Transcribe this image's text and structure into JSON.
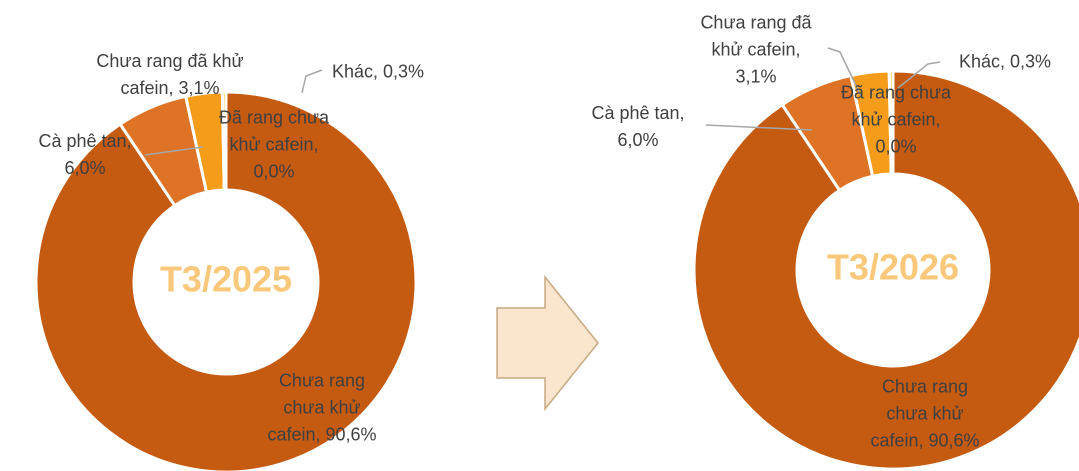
{
  "chart_data": [
    {
      "type": "donut",
      "center_label": "T3/2025",
      "values": [
        90.6,
        6.0,
        3.1,
        0.0,
        0.3
      ],
      "value_labels": [
        "Chưa rang chưa khử cafein, 90,6%",
        "Cà phê tan, 6,0%",
        "Chưa rang đã khử cafein, 3,1%",
        "Đã rang chưa khử cafein, 0,0%",
        "Khác, 0,3%"
      ],
      "colors": [
        "#c55a11",
        "#de7326",
        "#f59d1a",
        "#f8b133",
        "#ffc000"
      ]
    },
    {
      "type": "donut",
      "center_label": "T3/2026",
      "values": [
        90.6,
        6.0,
        3.1,
        0.0,
        0.3
      ],
      "value_labels": [
        "Chưa rang chưa khử cafein, 90,6%",
        "Cà phê tan, 6,0%",
        "Chưa rang đã khử cafein, 3,1%",
        "Đã rang chưa khử cafein, 0,0%",
        "Khác, 0,3%"
      ],
      "colors": [
        "#c55a11",
        "#de7326",
        "#f59d1a",
        "#f8b133",
        "#ffc000"
      ]
    }
  ]
}
